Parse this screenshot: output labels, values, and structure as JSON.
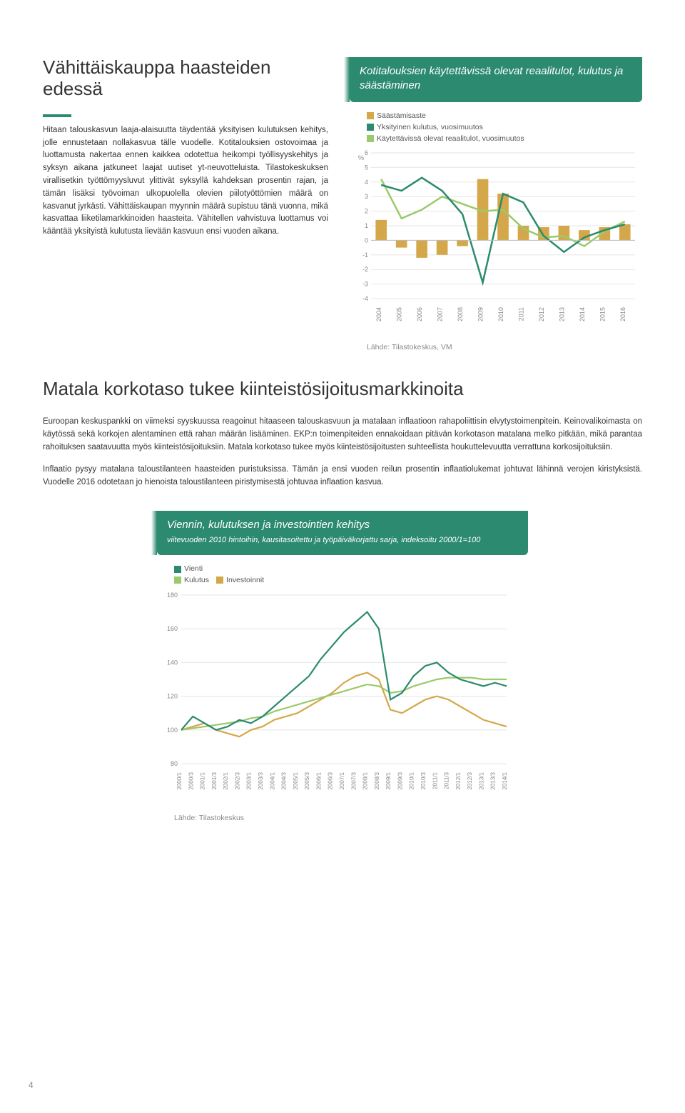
{
  "page_number": "4",
  "section1": {
    "heading": "Vähittäiskauppa haasteiden edessä",
    "body": "Hitaan talouskasvun laaja-alaisuutta täydentää yksityisen kulutuksen kehitys, jolle ennustetaan nollakasvua tälle vuodelle. Kotitalouksien ostovoimaa ja luottamusta nakertaa ennen kaikkea odotettua heikompi työllisyyskehitys ja syksyn aikana jatkuneet laajat uutiset yt-neuvotteluista. Tilastokeskuksen virallisetkin työttömyysluvut ylittivät syksyllä kahdeksan prosentin rajan, ja tämän lisäksi työvoiman ulkopuolella olevien piilotyöttömien määrä on kasvanut jyrkästi. Vähittäiskaupan myynnin määrä supistuu tänä vuonna, mikä kasvattaa liiketilamarkkinoiden haasteita. Vähitellen vahvistuva luottamus voi kääntää yksityistä kulutusta lievään kasvuun ensi vuoden aikana."
  },
  "chart1": {
    "banner_title": "Kotitalouksien käytettävissä olevat reaalitulot, kulutus ja säästäminen",
    "type": "combo-bar-line",
    "legend": [
      {
        "label": "Säästämisaste",
        "color": "#d4a84a"
      },
      {
        "label": "Yksityinen kulutus, vuosimuutos",
        "color": "#2b8a6f"
      },
      {
        "label": "Käytettävissä olevat reaalitulot, vuosimuutos",
        "color": "#9aca6a"
      }
    ],
    "y_label": "%",
    "ylim": [
      -4,
      6
    ],
    "ytick_step": 1,
    "x_labels": [
      "2004",
      "2005",
      "2006",
      "2007",
      "2008",
      "2009",
      "2010",
      "2011",
      "2012",
      "2013",
      "2014",
      "2015",
      "2016"
    ],
    "background_color": "#ffffff",
    "grid_color": "#e6e6e6",
    "bars": {
      "color": "#d4a84a",
      "values": [
        1.4,
        -0.5,
        -1.2,
        -1.0,
        -0.4,
        4.2,
        3.2,
        1.0,
        0.9,
        1.0,
        0.7,
        0.9,
        1.1
      ]
    },
    "line_consumption": {
      "color": "#2b8a6f",
      "width": 2.5,
      "values": [
        3.8,
        3.4,
        4.3,
        3.4,
        1.8,
        -2.9,
        3.2,
        2.6,
        0.3,
        -0.8,
        0.2,
        0.7,
        1.1
      ]
    },
    "line_income": {
      "color": "#9aca6a",
      "width": 2.5,
      "values": [
        4.2,
        1.5,
        2.1,
        3.0,
        2.5,
        2.0,
        2.1,
        0.8,
        0.2,
        0.3,
        -0.4,
        0.6,
        1.3
      ]
    },
    "source": "Lähde: Tilastokeskus, VM"
  },
  "section2": {
    "heading": "Matala korkotaso tukee kiinteistösijoitusmarkkinoita",
    "para1": "Euroopan keskuspankki on viimeksi syyskuussa reagoinut hitaaseen talouskasvuun ja matalaan inflaatioon rahapoliittisin elvytystoimenpitein. Keinovalikoimasta on käytössä sekä korkojen alentaminen että rahan määrän lisääminen. EKP:n toimenpiteiden ennakoidaan pitävän korkotason matalana melko pitkään, mikä parantaa rahoituksen saatavuutta myös kiinteistösijoituksiin. Matala korkotaso tukee myös kiinteistösijoitusten suhteellista houkuttelevuutta verrattuna korkosijoituksiin.",
    "para2": "Inflaatio pysyy matalana taloustilanteen haasteiden puristuksissa. Tämän ja ensi vuoden reilun prosentin inflaatiolukemat johtuvat lähinnä verojen kiristyksistä. Vuodelle 2016 odotetaan jo hienoista taloustilanteen piristymisestä johtuvaa inflaation kasvua."
  },
  "chart2": {
    "banner_title": "Viennin, kulutuksen ja investointien kehitys",
    "banner_sub": "viitevuoden 2010 hintoihin, kausitasoitettu ja työpäiväkorjattu sarja, indeksoitu 2000/1=100",
    "type": "line",
    "legend": [
      {
        "label": "Vienti",
        "color": "#2b8a6f"
      },
      {
        "label": "Kulutus",
        "color": "#9aca6a"
      },
      {
        "label": "Investoinnit",
        "color": "#d4a84a"
      }
    ],
    "ylim": [
      80,
      180
    ],
    "ytick_step": 20,
    "x_labels": [
      "2000/1",
      "2000/3",
      "2001/1",
      "2001/3",
      "2002/1",
      "2002/3",
      "2003/1",
      "2003/3",
      "2004/1",
      "2004/3",
      "2005/1",
      "2005/3",
      "2006/1",
      "2006/3",
      "2007/1",
      "2007/3",
      "2008/1",
      "2008/3",
      "2009/1",
      "2009/3",
      "2010/1",
      "2010/3",
      "2011/1",
      "2011/3",
      "2012/1",
      "2012/3",
      "2013/1",
      "2013/3",
      "2014/1"
    ],
    "background_color": "#ffffff",
    "grid_color": "#e6e6e6",
    "line_export": {
      "color": "#2b8a6f",
      "width": 2.2,
      "values": [
        100,
        108,
        104,
        100,
        102,
        106,
        104,
        108,
        114,
        120,
        126,
        132,
        142,
        150,
        158,
        164,
        170,
        160,
        118,
        122,
        132,
        138,
        140,
        134,
        130,
        128,
        126,
        128,
        126
      ]
    },
    "line_consumption": {
      "color": "#9aca6a",
      "width": 2.2,
      "values": [
        100,
        101,
        102,
        103,
        104,
        105,
        107,
        108,
        111,
        113,
        115,
        117,
        119,
        121,
        123,
        125,
        127,
        126,
        122,
        123,
        126,
        128,
        130,
        131,
        131,
        131,
        130,
        130,
        130
      ]
    },
    "line_invest": {
      "color": "#d4a84a",
      "width": 2.2,
      "values": [
        100,
        102,
        104,
        100,
        98,
        96,
        100,
        102,
        106,
        108,
        110,
        114,
        118,
        122,
        128,
        132,
        134,
        130,
        112,
        110,
        114,
        118,
        120,
        118,
        114,
        110,
        106,
        104,
        102
      ]
    },
    "source": "Lähde: Tilastokeskus"
  }
}
